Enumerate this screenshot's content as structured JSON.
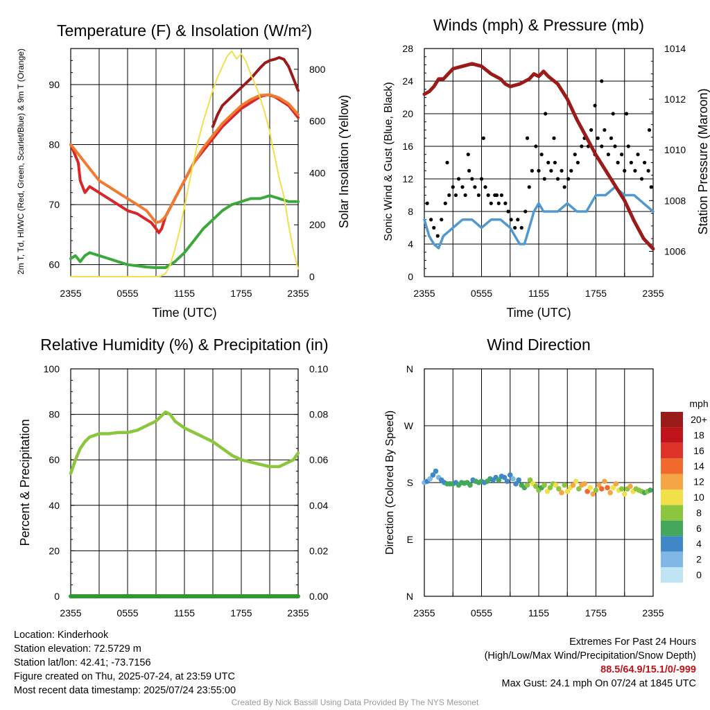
{
  "x_ticks": [
    "2355",
    "0555",
    "1155",
    "1755",
    "2355"
  ],
  "chart_data": [
    {
      "type": "line",
      "title": "Temperature (F) & Insolation (W/m²)",
      "xlabel": "Time (UTC)",
      "ylabel": "2m T, Td, HI/WC (Red, Green, Scarlet/Blue) & 9m T (Orange)",
      "y2label": "Solar Insolation (Yellow)",
      "xlim": [
        0,
        24
      ],
      "ylim": [
        58,
        96
      ],
      "y_ticks": [
        60,
        70,
        80,
        90
      ],
      "y2lim": [
        0,
        880
      ],
      "y2_ticks": [
        0,
        200,
        400,
        600,
        800
      ],
      "grid": true,
      "series": [
        {
          "color": "#d8262a",
          "axis": "left",
          "x": [
            0,
            0.8,
            1.0,
            1.5,
            2,
            3,
            4,
            5,
            6,
            7,
            7.5,
            8,
            8.5,
            9,
            9.3,
            9.6,
            10,
            10.5,
            11,
            12,
            13,
            14,
            15,
            16,
            17,
            18,
            19,
            20,
            20.8,
            21.5,
            22,
            22.5,
            23,
            23.5,
            24
          ],
          "y": [
            80,
            77,
            74,
            72,
            73,
            72,
            71,
            70,
            69,
            68.5,
            68,
            67.5,
            67,
            66,
            65.3,
            66,
            68,
            69.5,
            71,
            74,
            77,
            79,
            81,
            83,
            84.5,
            86,
            87,
            88,
            88.3,
            88,
            87.5,
            87,
            86.5,
            85.5,
            84.5
          ]
        },
        {
          "color": "#f07a30",
          "axis": "left",
          "x": [
            0,
            1,
            2,
            3,
            4,
            5,
            6,
            7,
            8,
            8.5,
            9,
            9.5,
            10,
            11,
            12,
            13,
            14,
            15,
            16,
            17,
            18,
            19,
            20,
            21,
            22,
            23,
            24
          ],
          "y": [
            80,
            78,
            76,
            74,
            73,
            72,
            71,
            70,
            69,
            68,
            67,
            67.2,
            68,
            71,
            74,
            77,
            79.5,
            81.5,
            83.5,
            85,
            86.5,
            87.5,
            88.2,
            88.3,
            87.8,
            86.8,
            85
          ]
        },
        {
          "color": "#3aa83a",
          "axis": "left",
          "x": [
            0,
            0.5,
            1,
            1.5,
            2,
            3,
            4,
            5,
            6,
            7,
            8,
            9,
            10,
            11,
            12,
            13,
            14,
            15,
            16,
            17,
            18,
            19,
            20,
            21,
            22,
            23,
            24
          ],
          "y": [
            61,
            61.5,
            60.5,
            61.5,
            62,
            61.5,
            61,
            60.5,
            60,
            59.8,
            59.6,
            59.5,
            59.5,
            60.5,
            62,
            64,
            66,
            67.5,
            69,
            70,
            70.5,
            71,
            71,
            71.5,
            71,
            70.5,
            70.5
          ]
        },
        {
          "color": "#9b1b1b",
          "axis": "left",
          "x": [
            15,
            15.5,
            16,
            17,
            18,
            19,
            20,
            20.5,
            21,
            21.5,
            22,
            22.5,
            23,
            23.5,
            24
          ],
          "y": [
            83,
            85,
            86.5,
            88,
            89.5,
            91,
            92.8,
            93.6,
            94,
            94.2,
            94.5,
            94.2,
            93,
            91,
            89
          ]
        },
        {
          "color": "#f1e04a",
          "axis": "right",
          "x": [
            0,
            2,
            4,
            6,
            8,
            9,
            9.5,
            10,
            10.5,
            11,
            11.5,
            12,
            12.5,
            13,
            13.5,
            14,
            14.5,
            15,
            15.5,
            16,
            16.5,
            17,
            17.5,
            18,
            18.5,
            19,
            19.5,
            20,
            20.5,
            21,
            21.2,
            21.5,
            22,
            22.5,
            23,
            23.5,
            24
          ],
          "y": [
            0,
            0,
            0,
            0,
            0,
            0,
            2,
            12,
            45,
            105,
            180,
            270,
            360,
            450,
            530,
            600,
            660,
            720,
            770,
            810,
            850,
            870,
            840,
            860,
            830,
            780,
            740,
            690,
            630,
            560,
            520,
            470,
            380,
            310,
            200,
            100,
            30
          ]
        }
      ]
    },
    {
      "type": "line",
      "title": "Winds (mph) & Pressure (mb)",
      "xlabel": "Time (UTC)",
      "ylabel": "Sonic Wind & Gust (Blue, Black)",
      "y2label": "Station Pressure (Maroon)",
      "xlim": [
        0,
        24
      ],
      "ylim": [
        0,
        28
      ],
      "y_ticks": [
        0,
        4,
        8,
        12,
        16,
        20,
        24,
        28
      ],
      "y2lim": [
        1005,
        1014
      ],
      "y2_ticks": [
        1006,
        1008,
        1010,
        1012,
        1014
      ],
      "grid": true,
      "series": [
        {
          "color": "#4f98d0",
          "axis": "left",
          "x": [
            0,
            0.5,
            1,
            1.5,
            2,
            3,
            4,
            5,
            6,
            7,
            8,
            9,
            9.5,
            10,
            10.5,
            11,
            11.5,
            12,
            12.5,
            13,
            14,
            15,
            16,
            17,
            18,
            19,
            20,
            21,
            22,
            23,
            24
          ],
          "y": [
            7,
            5,
            4,
            3.5,
            5,
            6,
            7,
            7,
            6,
            7,
            7,
            6,
            5,
            4,
            4,
            6,
            8,
            9,
            8,
            8,
            8,
            9,
            8,
            8,
            10,
            10,
            11,
            10,
            10,
            9,
            8
          ]
        },
        {
          "color": "#9b1b1b",
          "axis": "right",
          "x": [
            0,
            0.5,
            1,
            1.5,
            2,
            3,
            4,
            5,
            6,
            7,
            8,
            8.5,
            9,
            10,
            11,
            11.5,
            12,
            12.5,
            13,
            14,
            15,
            15.5,
            16,
            17,
            18,
            19,
            20,
            21,
            22,
            23,
            23.5,
            24
          ],
          "y": [
            1012.2,
            1012.3,
            1012.5,
            1012.8,
            1012.8,
            1013.2,
            1013.3,
            1013.4,
            1013.3,
            1013,
            1012.8,
            1012.6,
            1012.5,
            1012.6,
            1012.8,
            1013,
            1012.9,
            1013.1,
            1012.9,
            1012.6,
            1012,
            1011.6,
            1011.2,
            1010.5,
            1009.8,
            1009.2,
            1008.6,
            1008,
            1007.2,
            1006.5,
            1006.3,
            1006.1
          ]
        }
      ],
      "gust_points": {
        "color": "#000000",
        "x": [
          0.3,
          0.7,
          1.0,
          1.4,
          1.8,
          2.2,
          2.6,
          3.0,
          3.3,
          3.6,
          4.0,
          4.3,
          4.7,
          5.0,
          5.3,
          5.7,
          6.0,
          6.4,
          6.7,
          7.0,
          7.4,
          7.8,
          8.1,
          8.5,
          8.8,
          9.1,
          9.5,
          9.8,
          10.2,
          10.6,
          11.0,
          11.3,
          11.7,
          12.0,
          12.3,
          12.6,
          13.0,
          13.3,
          13.7,
          14.0,
          14.4,
          14.7,
          15.1,
          15.4,
          15.8,
          16.1,
          16.5,
          16.8,
          17.2,
          17.5,
          17.9,
          18.2,
          18.6,
          18.9,
          19.3,
          19.6,
          20.0,
          20.3,
          20.7,
          21.0,
          21.4,
          21.7,
          22.1,
          22.4,
          22.8,
          23.1,
          23.5,
          23.8,
          2.4,
          4.6,
          6.2,
          7.6,
          10.8,
          12.7,
          17.9,
          18.6,
          13.6,
          19.8,
          21.2,
          23.6
        ],
        "y": [
          9,
          7,
          6,
          5,
          7,
          9,
          10,
          11,
          10,
          12,
          11,
          10,
          13,
          12,
          11,
          10,
          12,
          11,
          10,
          9,
          10,
          9,
          10,
          9,
          8,
          7,
          6,
          7,
          6,
          8,
          11,
          13,
          16,
          13,
          15,
          12,
          14,
          13,
          14,
          12,
          13,
          11,
          12,
          13,
          15,
          14,
          16,
          17,
          16,
          18,
          15,
          17,
          16,
          18,
          15,
          17,
          16,
          14,
          15,
          13,
          16,
          14,
          13,
          15,
          12,
          14,
          13,
          11,
          14,
          15,
          17,
          10,
          17,
          20,
          21,
          24,
          17,
          20,
          20,
          18
        ]
      }
    },
    {
      "type": "line",
      "title": "Relative Humidity (%) & Precipitation (in)",
      "ylabel": "Percent & Precipitation",
      "xlim": [
        0,
        24
      ],
      "ylim": [
        0,
        100
      ],
      "y_ticks": [
        0,
        20,
        40,
        60,
        80,
        100
      ],
      "y2lim": [
        0,
        0.1
      ],
      "y2_ticks": [
        "0.00",
        "0.02",
        "0.04",
        "0.06",
        "0.08",
        "0.10"
      ],
      "grid": true,
      "series": [
        {
          "color": "#8cc63f",
          "axis": "left",
          "x": [
            0,
            0.5,
            1,
            1.5,
            2,
            3,
            4,
            5,
            6,
            7,
            8,
            9,
            9.5,
            10,
            10.5,
            11,
            12,
            13,
            14,
            15,
            16,
            17,
            18,
            19,
            20,
            21,
            22,
            23,
            23.5,
            24
          ],
          "y": [
            54,
            60,
            65,
            68,
            70,
            71.5,
            71.5,
            72,
            72,
            73,
            75,
            77,
            79,
            81,
            80,
            77,
            74,
            72,
            70,
            68,
            65,
            62,
            60,
            59,
            58,
            57,
            57,
            59,
            60,
            63
          ]
        },
        {
          "color": "#2c9a2c",
          "axis": "right",
          "x": [
            0,
            24
          ],
          "y": [
            0,
            0
          ]
        }
      ]
    },
    {
      "type": "scatter",
      "title": "Wind Direction",
      "ylabel": "Direction (Colored By Speed)",
      "xlim": [
        0,
        24
      ],
      "y_ticks": [
        "N",
        "E",
        "S",
        "W",
        "N"
      ],
      "grid": true,
      "legend": {
        "title": "mph",
        "labels": [
          "20+",
          "18",
          "16",
          "14",
          "12",
          "10",
          "8",
          "6",
          "4",
          "2",
          "0"
        ],
        "colors": [
          "#9b1b1b",
          "#c0141c",
          "#dd3427",
          "#f06a2d",
          "#f6a544",
          "#f1e04a",
          "#8cc63f",
          "#43a85c",
          "#3f87c6",
          "#7fb8e6",
          "#bfe4f6"
        ]
      },
      "points": {
        "x": [
          0,
          0.3,
          0.6,
          0.9,
          1.2,
          1.5,
          1.8,
          2.1,
          2.4,
          2.7,
          3,
          3.3,
          3.6,
          3.9,
          4.2,
          4.5,
          4.8,
          5.1,
          5.4,
          5.7,
          6,
          6.3,
          6.6,
          6.9,
          7.2,
          7.5,
          7.8,
          8.1,
          8.4,
          8.7,
          9,
          9.3,
          9.6,
          9.9,
          10.2,
          10.5,
          10.8,
          11.1,
          11.4,
          11.7,
          12,
          12.3,
          12.6,
          12.9,
          13.2,
          13.5,
          13.8,
          14.1,
          14.4,
          14.7,
          15,
          15.3,
          15.6,
          15.9,
          16.2,
          16.5,
          16.8,
          17.1,
          17.4,
          17.7,
          18,
          18.3,
          18.6,
          18.9,
          19.2,
          19.5,
          19.8,
          20.1,
          20.4,
          20.7,
          21,
          21.3,
          21.6,
          21.9,
          22.2,
          22.5,
          22.8,
          23.1,
          23.4,
          23.7
        ],
        "deg": [
          180,
          182,
          186,
          192,
          198,
          188,
          184,
          180,
          178,
          178,
          178,
          180,
          176,
          180,
          179,
          180,
          176,
          184,
          182,
          180,
          182,
          180,
          182,
          186,
          184,
          188,
          184,
          190,
          188,
          182,
          192,
          186,
          178,
          184,
          176,
          172,
          176,
          184,
          178,
          174,
          168,
          172,
          176,
          166,
          172,
          178,
          176,
          170,
          164,
          176,
          166,
          172,
          176,
          182,
          170,
          176,
          178,
          166,
          172,
          162,
          168,
          176,
          170,
          182,
          172,
          164,
          172,
          178,
          168,
          170,
          162,
          170,
          174,
          166,
          170,
          168,
          166,
          164,
          166,
          168
        ],
        "speed": [
          3,
          4,
          3,
          4,
          4,
          3,
          4,
          5,
          6,
          6,
          6,
          5,
          6,
          6,
          6,
          6,
          6,
          5,
          6,
          6,
          6,
          5,
          6,
          6,
          5,
          5,
          6,
          5,
          4,
          4,
          4,
          3,
          4,
          4,
          6,
          7,
          8,
          8,
          11,
          9,
          8,
          7,
          8,
          10,
          9,
          9,
          10,
          9,
          12,
          9,
          11,
          10,
          12,
          10,
          9,
          12,
          13,
          14,
          11,
          12,
          9,
          13,
          14,
          12,
          15,
          12,
          10,
          13,
          11,
          9,
          10,
          8,
          12,
          10,
          9,
          8,
          8,
          7,
          8,
          7
        ]
      }
    }
  ],
  "info": {
    "location": "Location: Kinderhook",
    "elevation": "Station elevation: 72.5729 m",
    "latlon": "Station lat/lon: 42.41; -73.7156",
    "created": "Figure created on Thu, 2025-07-24, at 23:59 UTC",
    "recent": "Most recent data timestamp: 2025/07/24 23:55:00"
  },
  "extremes": {
    "title": "Extremes For Past 24 Hours",
    "subtitle": "(High/Low/Max Wind/Precipitation/Snow Depth)",
    "values": "88.5/64.9/15.1/0/-999",
    "gust": "Max Gust: 24.1 mph On 07/24 at 1845 UTC"
  },
  "credit": "Created By Nick Bassill Using Data Provided By The NYS Mesonet"
}
